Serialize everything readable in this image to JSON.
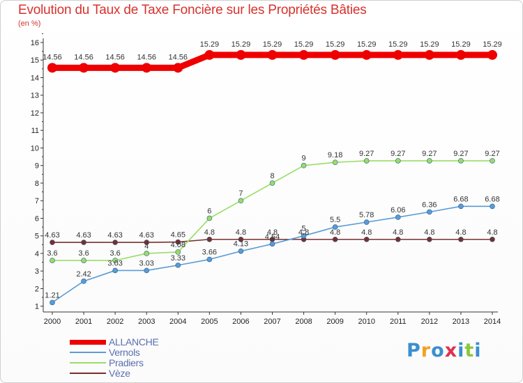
{
  "chart_data": {
    "type": "line",
    "title": "Evolution du Taux de Taxe Foncière sur les Propriétés Bâties",
    "ylabel": "(en %)",
    "xlabel": "",
    "ylim": [
      1,
      16
    ],
    "yticks": [
      1,
      2,
      3,
      4,
      5,
      6,
      7,
      8,
      9,
      10,
      11,
      12,
      13,
      14,
      15,
      16
    ],
    "x": [
      2000,
      2001,
      2002,
      2003,
      2004,
      2005,
      2006,
      2007,
      2008,
      2009,
      2010,
      2011,
      2012,
      2013,
      2014
    ],
    "series": [
      {
        "name": "ALLANCHE",
        "color": "#ee0000",
        "values": [
          14.56,
          14.56,
          14.56,
          14.56,
          14.56,
          15.29,
          15.29,
          15.29,
          15.29,
          15.29,
          15.29,
          15.29,
          15.29,
          15.29,
          15.29
        ],
        "labels": [
          "14.56",
          "14.56",
          "14.56",
          "14.56",
          "14.56",
          "15.29",
          "15.29",
          "15.29",
          "15.29",
          "15.29",
          "15.29",
          "15.29",
          "15.29",
          "15.29",
          "15.29"
        ]
      },
      {
        "name": "Vernols",
        "color": "#5b9bd5",
        "values": [
          1.21,
          2.42,
          3.03,
          3.03,
          3.33,
          3.66,
          4.13,
          4.54,
          5,
          5.5,
          5.78,
          6.06,
          6.36,
          6.68,
          6.68
        ],
        "labels": [
          "1.21",
          "2.42",
          "3.03",
          "3.03",
          "3.33",
          "3.66",
          "4.13",
          "4.54",
          "5",
          "5.5",
          "5.78",
          "6.06",
          "6.36",
          "6.68",
          "6.68"
        ]
      },
      {
        "name": "Pradiers",
        "color": "#99dd66",
        "values": [
          3.6,
          3.6,
          3.6,
          4,
          4.08,
          6,
          7,
          8,
          9,
          9.18,
          9.27,
          9.27,
          9.27,
          9.27,
          9.27
        ],
        "labels": [
          "3.6",
          "3.6",
          "3.6",
          "4",
          "4.08",
          "6",
          "7",
          "8",
          "9",
          "9.18",
          "9.27",
          "9.27",
          "9.27",
          "9.27",
          "9.27"
        ]
      },
      {
        "name": "Vèze",
        "color": "#7a2e2e",
        "values": [
          4.63,
          4.63,
          4.63,
          4.63,
          4.65,
          4.8,
          4.8,
          4.8,
          4.8,
          4.8,
          4.8,
          4.8,
          4.8,
          4.8,
          4.8
        ],
        "labels": [
          "4.63",
          "4.63",
          "4.63",
          "4.63",
          "4.65",
          "4.8",
          "4.8",
          "4.8",
          "4.8",
          "4.8",
          "4.8",
          "4.8",
          "4.8",
          "4.8",
          "4.8"
        ]
      }
    ],
    "grid": false,
    "legend": "bottom-left"
  },
  "logo": {
    "letters": [
      "P",
      "r",
      "o",
      "x",
      "i",
      "t",
      "i"
    ],
    "colors": [
      "#3a8fd0",
      "#f4a020",
      "#3a8fd0",
      "#e03050",
      "#3a8fd0",
      "#8cc63f",
      "#3a8fd0"
    ]
  }
}
